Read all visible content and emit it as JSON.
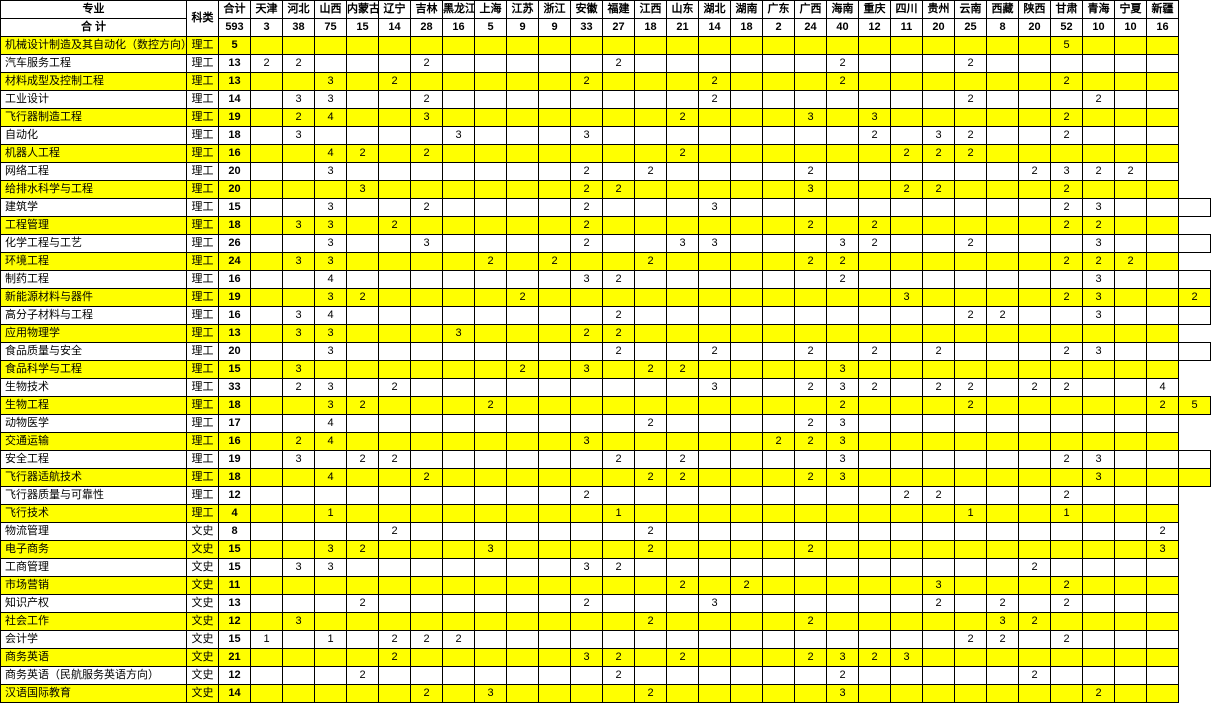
{
  "columns": [
    "专业",
    "科类",
    "合计",
    "天津",
    "河北",
    "山西",
    "内蒙古",
    "辽宁",
    "吉林",
    "黑龙江",
    "上海",
    "江苏",
    "浙江",
    "安徽",
    "福建",
    "江西",
    "山东",
    "湖北",
    "湖南",
    "广东",
    "广西",
    "海南",
    "重庆",
    "四川",
    "贵州",
    "云南",
    "西藏",
    "陕西",
    "甘肃",
    "青海",
    "宁夏",
    "新疆"
  ],
  "summary_row": {
    "major": "合  计",
    "values": [
      593,
      3,
      38,
      75,
      15,
      14,
      28,
      16,
      5,
      9,
      9,
      33,
      27,
      18,
      21,
      14,
      18,
      2,
      24,
      40,
      12,
      11,
      20,
      25,
      8,
      20,
      52,
      10,
      10,
      16
    ]
  },
  "rows": [
    {
      "hl": true,
      "major": "机械设计制造及其自动化（数控方向）",
      "cat": "理工",
      "v": [
        5,
        "",
        "",
        "",
        "",
        "",
        "",
        "",
        "",
        "",
        "",
        "",
        "",
        "",
        "",
        "",
        "",
        "",
        "",
        "",
        "",
        "",
        "",
        "",
        "",
        "",
        "5",
        "",
        "",
        ""
      ]
    },
    {
      "hl": false,
      "major": "汽车服务工程",
      "cat": "理工",
      "v": [
        13,
        2,
        2,
        "",
        "",
        "",
        "2",
        "",
        "",
        "",
        "",
        "",
        "2",
        "",
        "",
        "",
        "",
        "",
        "",
        "2",
        "",
        "",
        "",
        "2",
        "",
        "",
        "",
        "",
        "",
        ""
      ]
    },
    {
      "hl": true,
      "major": "材料成型及控制工程",
      "cat": "理工",
      "v": [
        13,
        "",
        "",
        3,
        "",
        2,
        "",
        "",
        "",
        "",
        "",
        2,
        "",
        "",
        "",
        2,
        "",
        "",
        "",
        2,
        "",
        "",
        "",
        "",
        "",
        "",
        "2",
        "",
        "",
        ""
      ]
    },
    {
      "hl": false,
      "major": "工业设计",
      "cat": "理工",
      "v": [
        14,
        "",
        3,
        3,
        "",
        "",
        2,
        "",
        "",
        "",
        "",
        "",
        "",
        "",
        "",
        2,
        "",
        "",
        "",
        "",
        "",
        "",
        "",
        2,
        "",
        "",
        "",
        "2",
        "",
        ""
      ]
    },
    {
      "hl": true,
      "major": "飞行器制造工程",
      "cat": "理工",
      "v": [
        19,
        "",
        2,
        4,
        "",
        "",
        3,
        "",
        "",
        "",
        "",
        "",
        "",
        "",
        2,
        "",
        "",
        "",
        3,
        "",
        3,
        "",
        "",
        "",
        "",
        "",
        2,
        "",
        "",
        ""
      ]
    },
    {
      "hl": false,
      "major": "自动化",
      "cat": "理工",
      "v": [
        18,
        "",
        3,
        "",
        "",
        "",
        "",
        3,
        "",
        "",
        "",
        3,
        "",
        "",
        "",
        "",
        "",
        "",
        "",
        "",
        2,
        "",
        3,
        2,
        "",
        "",
        2,
        "",
        "",
        ""
      ]
    },
    {
      "hl": true,
      "major": "机器人工程",
      "cat": "理工",
      "v": [
        16,
        "",
        "",
        4,
        2,
        "",
        2,
        "",
        "",
        "",
        "",
        "",
        "",
        "",
        2,
        "",
        "",
        "",
        "",
        "",
        "",
        2,
        2,
        2,
        "",
        "",
        "",
        "",
        "",
        ""
      ]
    },
    {
      "hl": false,
      "major": "网络工程",
      "cat": "理工",
      "v": [
        20,
        "",
        "",
        3,
        "",
        "",
        "",
        "",
        "",
        "",
        "",
        2,
        "",
        2,
        "",
        "",
        "",
        "",
        2,
        "",
        "",
        "",
        "",
        "",
        "",
        2,
        3,
        2,
        2,
        ""
      ]
    },
    {
      "hl": true,
      "major": "给排水科学与工程",
      "cat": "理工",
      "v": [
        20,
        "",
        "",
        "",
        3,
        "",
        "",
        "",
        "",
        "",
        "",
        2,
        2,
        "",
        "",
        "",
        "",
        "",
        3,
        "",
        "",
        2,
        2,
        "",
        "",
        "",
        2,
        "",
        "",
        ""
      ]
    },
    {
      "hl": false,
      "major": "建筑学",
      "cat": "理工",
      "v": [
        15,
        "",
        "",
        3,
        "",
        "",
        2,
        "",
        "",
        "",
        "",
        2,
        "",
        "",
        "",
        3,
        "",
        "",
        "",
        "",
        "",
        "",
        "",
        "",
        "",
        "",
        2,
        3,
        "",
        "",
        ""
      ]
    },
    {
      "hl": true,
      "major": "工程管理",
      "cat": "理工",
      "v": [
        18,
        "",
        3,
        3,
        "",
        2,
        "",
        "",
        "",
        "",
        "",
        2,
        "",
        "",
        "",
        "",
        "",
        "",
        2,
        "",
        2,
        "",
        "",
        "",
        "",
        "",
        "2",
        2,
        "",
        ""
      ]
    },
    {
      "hl": false,
      "major": "化学工程与工艺",
      "cat": "理工",
      "v": [
        26,
        "",
        "",
        3,
        "",
        "",
        3,
        "",
        "",
        "",
        "",
        2,
        "",
        "",
        3,
        3,
        "",
        "",
        "",
        3,
        2,
        "",
        "",
        2,
        "",
        "",
        "",
        3,
        "",
        "",
        ""
      ]
    },
    {
      "hl": true,
      "major": "环境工程",
      "cat": "理工",
      "v": [
        24,
        "",
        3,
        3,
        "",
        "",
        "",
        "",
        2,
        "",
        2,
        "",
        "",
        2,
        "",
        "",
        "",
        "",
        2,
        2,
        "",
        "",
        "",
        "",
        "",
        "",
        "2",
        2,
        2,
        ""
      ]
    },
    {
      "hl": false,
      "major": "制药工程",
      "cat": "理工",
      "v": [
        16,
        "",
        "",
        4,
        "",
        "",
        "",
        "",
        "",
        "",
        "",
        3,
        2,
        "",
        "",
        "",
        "",
        "",
        "",
        2,
        "",
        "",
        "",
        "",
        "",
        "",
        "",
        3,
        "",
        "",
        ""
      ]
    },
    {
      "hl": true,
      "major": "新能源材料与器件",
      "cat": "理工",
      "v": [
        19,
        "",
        "",
        3,
        2,
        "",
        "",
        "",
        "",
        2,
        "",
        "",
        "",
        "",
        "",
        "",
        "",
        "",
        "",
        "",
        "",
        3,
        "",
        "",
        "",
        "",
        2,
        3,
        "",
        "",
        2
      ]
    },
    {
      "hl": false,
      "major": "高分子材料与工程",
      "cat": "理工",
      "v": [
        16,
        "",
        3,
        4,
        "",
        "",
        "",
        "",
        "",
        "",
        "",
        "",
        2,
        "",
        "",
        "",
        "",
        "",
        "",
        "",
        "",
        "",
        "",
        2,
        2,
        "",
        "",
        3,
        "",
        "",
        ""
      ]
    },
    {
      "hl": true,
      "major": "应用物理学",
      "cat": "理工",
      "v": [
        13,
        "",
        3,
        3,
        "",
        "",
        "",
        3,
        "",
        "",
        "",
        2,
        2,
        "",
        "",
        "",
        "",
        "",
        "",
        "",
        "",
        "",
        "",
        "",
        "",
        "",
        "",
        "",
        "",
        ""
      ]
    },
    {
      "hl": false,
      "major": "食品质量与安全",
      "cat": "理工",
      "v": [
        20,
        "",
        "",
        3,
        "",
        "",
        "",
        "",
        "",
        "",
        "",
        "",
        2,
        "",
        "",
        2,
        "",
        "",
        2,
        "",
        2,
        "",
        2,
        "",
        "",
        "",
        2,
        3,
        "",
        "",
        ""
      ]
    },
    {
      "hl": true,
      "major": "食品科学与工程",
      "cat": "理工",
      "v": [
        15,
        "",
        3,
        "",
        "",
        "",
        "",
        "",
        "",
        2,
        "",
        3,
        "",
        2,
        2,
        "",
        "",
        "",
        "",
        3,
        "",
        "",
        "",
        "",
        "",
        "",
        "",
        "",
        "",
        ""
      ]
    },
    {
      "hl": false,
      "major": "生物技术",
      "cat": "理工",
      "v": [
        33,
        "",
        2,
        3,
        "",
        2,
        "",
        "",
        "",
        "",
        "",
        "",
        "",
        "",
        "",
        3,
        "",
        "",
        2,
        3,
        2,
        "",
        2,
        2,
        "",
        2,
        2,
        "",
        "",
        4
      ]
    },
    {
      "hl": true,
      "major": "生物工程",
      "cat": "理工",
      "v": [
        18,
        "",
        "",
        3,
        2,
        "",
        "",
        "",
        2,
        "",
        "",
        "",
        "",
        "",
        "",
        "",
        "",
        "",
        "",
        2,
        "",
        "",
        "",
        2,
        "",
        "",
        "",
        "",
        "",
        2,
        5
      ]
    },
    {
      "hl": false,
      "major": "动物医学",
      "cat": "理工",
      "v": [
        17,
        "",
        "",
        4,
        "",
        "",
        "",
        "",
        "",
        "",
        "",
        "",
        "",
        2,
        "",
        "",
        "",
        "",
        2,
        3,
        "",
        "",
        "",
        "",
        "",
        "",
        "",
        "",
        "",
        ""
      ]
    },
    {
      "hl": true,
      "major": "交通运输",
      "cat": "理工",
      "v": [
        16,
        "",
        2,
        4,
        "",
        "",
        "",
        "",
        "",
        "",
        "",
        3,
        "",
        "",
        "",
        "",
        "",
        2,
        2,
        3,
        "",
        "",
        "",
        "",
        "",
        "",
        "",
        "",
        "",
        ""
      ]
    },
    {
      "hl": false,
      "major": "安全工程",
      "cat": "理工",
      "v": [
        19,
        "",
        3,
        "",
        2,
        2,
        "",
        "",
        "",
        "",
        "",
        "",
        2,
        "",
        2,
        "",
        "",
        "",
        "",
        3,
        "",
        "",
        "",
        "",
        "",
        "",
        2,
        3,
        "",
        "",
        ""
      ]
    },
    {
      "hl": true,
      "major": "飞行器适航技术",
      "cat": "理工",
      "v": [
        18,
        "",
        "",
        4,
        "",
        "",
        2,
        "",
        "",
        "",
        "",
        "",
        "",
        2,
        2,
        "",
        "",
        "",
        2,
        3,
        "",
        "",
        "",
        "",
        "",
        "",
        "",
        3,
        "",
        "",
        ""
      ]
    },
    {
      "hl": false,
      "major": "飞行器质量与可靠性",
      "cat": "理工",
      "v": [
        12,
        "",
        "",
        "",
        "",
        "",
        "",
        "",
        "",
        "",
        "",
        2,
        "",
        "",
        "",
        "",
        "",
        "",
        "",
        "",
        "",
        2,
        2,
        "",
        "",
        "",
        2,
        "",
        "",
        ""
      ]
    },
    {
      "hl": true,
      "major": "飞行技术",
      "cat": "理工",
      "v": [
        4,
        "",
        "",
        1,
        "",
        "",
        "",
        "",
        "",
        "",
        "",
        "",
        1,
        "",
        "",
        "",
        "",
        "",
        "",
        "",
        "",
        "",
        "",
        1,
        "",
        "",
        1,
        "",
        "",
        ""
      ]
    },
    {
      "hl": false,
      "major": "物流管理",
      "cat": "文史",
      "v": [
        8,
        "",
        "",
        "",
        "",
        2,
        "",
        "",
        "",
        "",
        "",
        "",
        "",
        2,
        "",
        "",
        "",
        "",
        "",
        "",
        "",
        "",
        "",
        "",
        "",
        "",
        "",
        "",
        "",
        2
      ]
    },
    {
      "hl": true,
      "major": "电子商务",
      "cat": "文史",
      "v": [
        15,
        "",
        "",
        3,
        2,
        "",
        "",
        "",
        3,
        "",
        "",
        "",
        "",
        2,
        "",
        "",
        "",
        "",
        2,
        "",
        "",
        "",
        "",
        "",
        "",
        "",
        "",
        "",
        "",
        3
      ]
    },
    {
      "hl": false,
      "major": "工商管理",
      "cat": "文史",
      "v": [
        15,
        "",
        3,
        3,
        "",
        "",
        "",
        "",
        "",
        "",
        "",
        3,
        2,
        "",
        "",
        "",
        "",
        "",
        "",
        "",
        "",
        "",
        "",
        "",
        "",
        2,
        "",
        "",
        "",
        ""
      ]
    },
    {
      "hl": true,
      "major": "市场营销",
      "cat": "文史",
      "v": [
        11,
        "",
        "",
        "",
        "",
        "",
        "",
        "",
        "",
        "",
        "",
        "",
        "",
        "",
        2,
        "",
        2,
        "",
        "",
        "",
        "",
        "",
        3,
        "",
        "",
        "",
        2,
        "",
        "",
        ""
      ]
    },
    {
      "hl": false,
      "major": "知识产权",
      "cat": "文史",
      "v": [
        13,
        "",
        "",
        "",
        2,
        "",
        "",
        "",
        "",
        "",
        "",
        2,
        "",
        "",
        "",
        3,
        "",
        "",
        "",
        "",
        "",
        "",
        2,
        "",
        2,
        "",
        2,
        "",
        "",
        ""
      ]
    },
    {
      "hl": true,
      "major": "社会工作",
      "cat": "文史",
      "v": [
        12,
        "",
        3,
        "",
        "",
        "",
        "",
        "",
        "",
        "",
        "",
        "",
        "",
        2,
        "",
        "",
        "",
        "",
        2,
        "",
        "",
        "",
        "",
        "",
        3,
        2,
        "",
        "",
        "",
        ""
      ]
    },
    {
      "hl": false,
      "major": "会计学",
      "cat": "文史",
      "v": [
        15,
        1,
        "",
        1,
        "",
        2,
        2,
        2,
        "",
        "",
        "",
        "",
        "",
        "",
        "",
        "",
        "",
        "",
        "",
        "",
        "",
        "",
        "",
        2,
        2,
        "",
        2,
        "",
        "",
        ""
      ]
    },
    {
      "hl": true,
      "major": "商务英语",
      "cat": "文史",
      "v": [
        21,
        "",
        "",
        "",
        "",
        2,
        "",
        "",
        "",
        "",
        "",
        3,
        2,
        "",
        2,
        "",
        "",
        "",
        2,
        3,
        2,
        3,
        "",
        "",
        "",
        "",
        "",
        "",
        "",
        ""
      ]
    },
    {
      "hl": false,
      "major": "商务英语（民航服务英语方向）",
      "cat": "文史",
      "v": [
        12,
        "",
        "",
        "",
        2,
        "",
        "",
        "",
        "",
        "",
        "",
        "",
        2,
        "",
        "",
        "",
        "",
        "",
        "",
        2,
        "",
        "",
        "",
        "",
        "",
        2,
        "",
        "",
        "",
        ""
      ]
    },
    {
      "hl": true,
      "major": "汉语国际教育",
      "cat": "文史",
      "v": [
        14,
        "",
        "",
        "",
        "",
        "",
        2,
        "",
        3,
        "",
        "",
        "",
        "",
        2,
        "",
        "",
        "",
        "",
        "",
        3,
        "",
        "",
        "",
        "",
        "",
        "",
        "",
        2,
        "",
        ""
      ]
    }
  ],
  "highlight_color": "#ffff00",
  "border_color": "#000000",
  "background_color": "#ffffff"
}
